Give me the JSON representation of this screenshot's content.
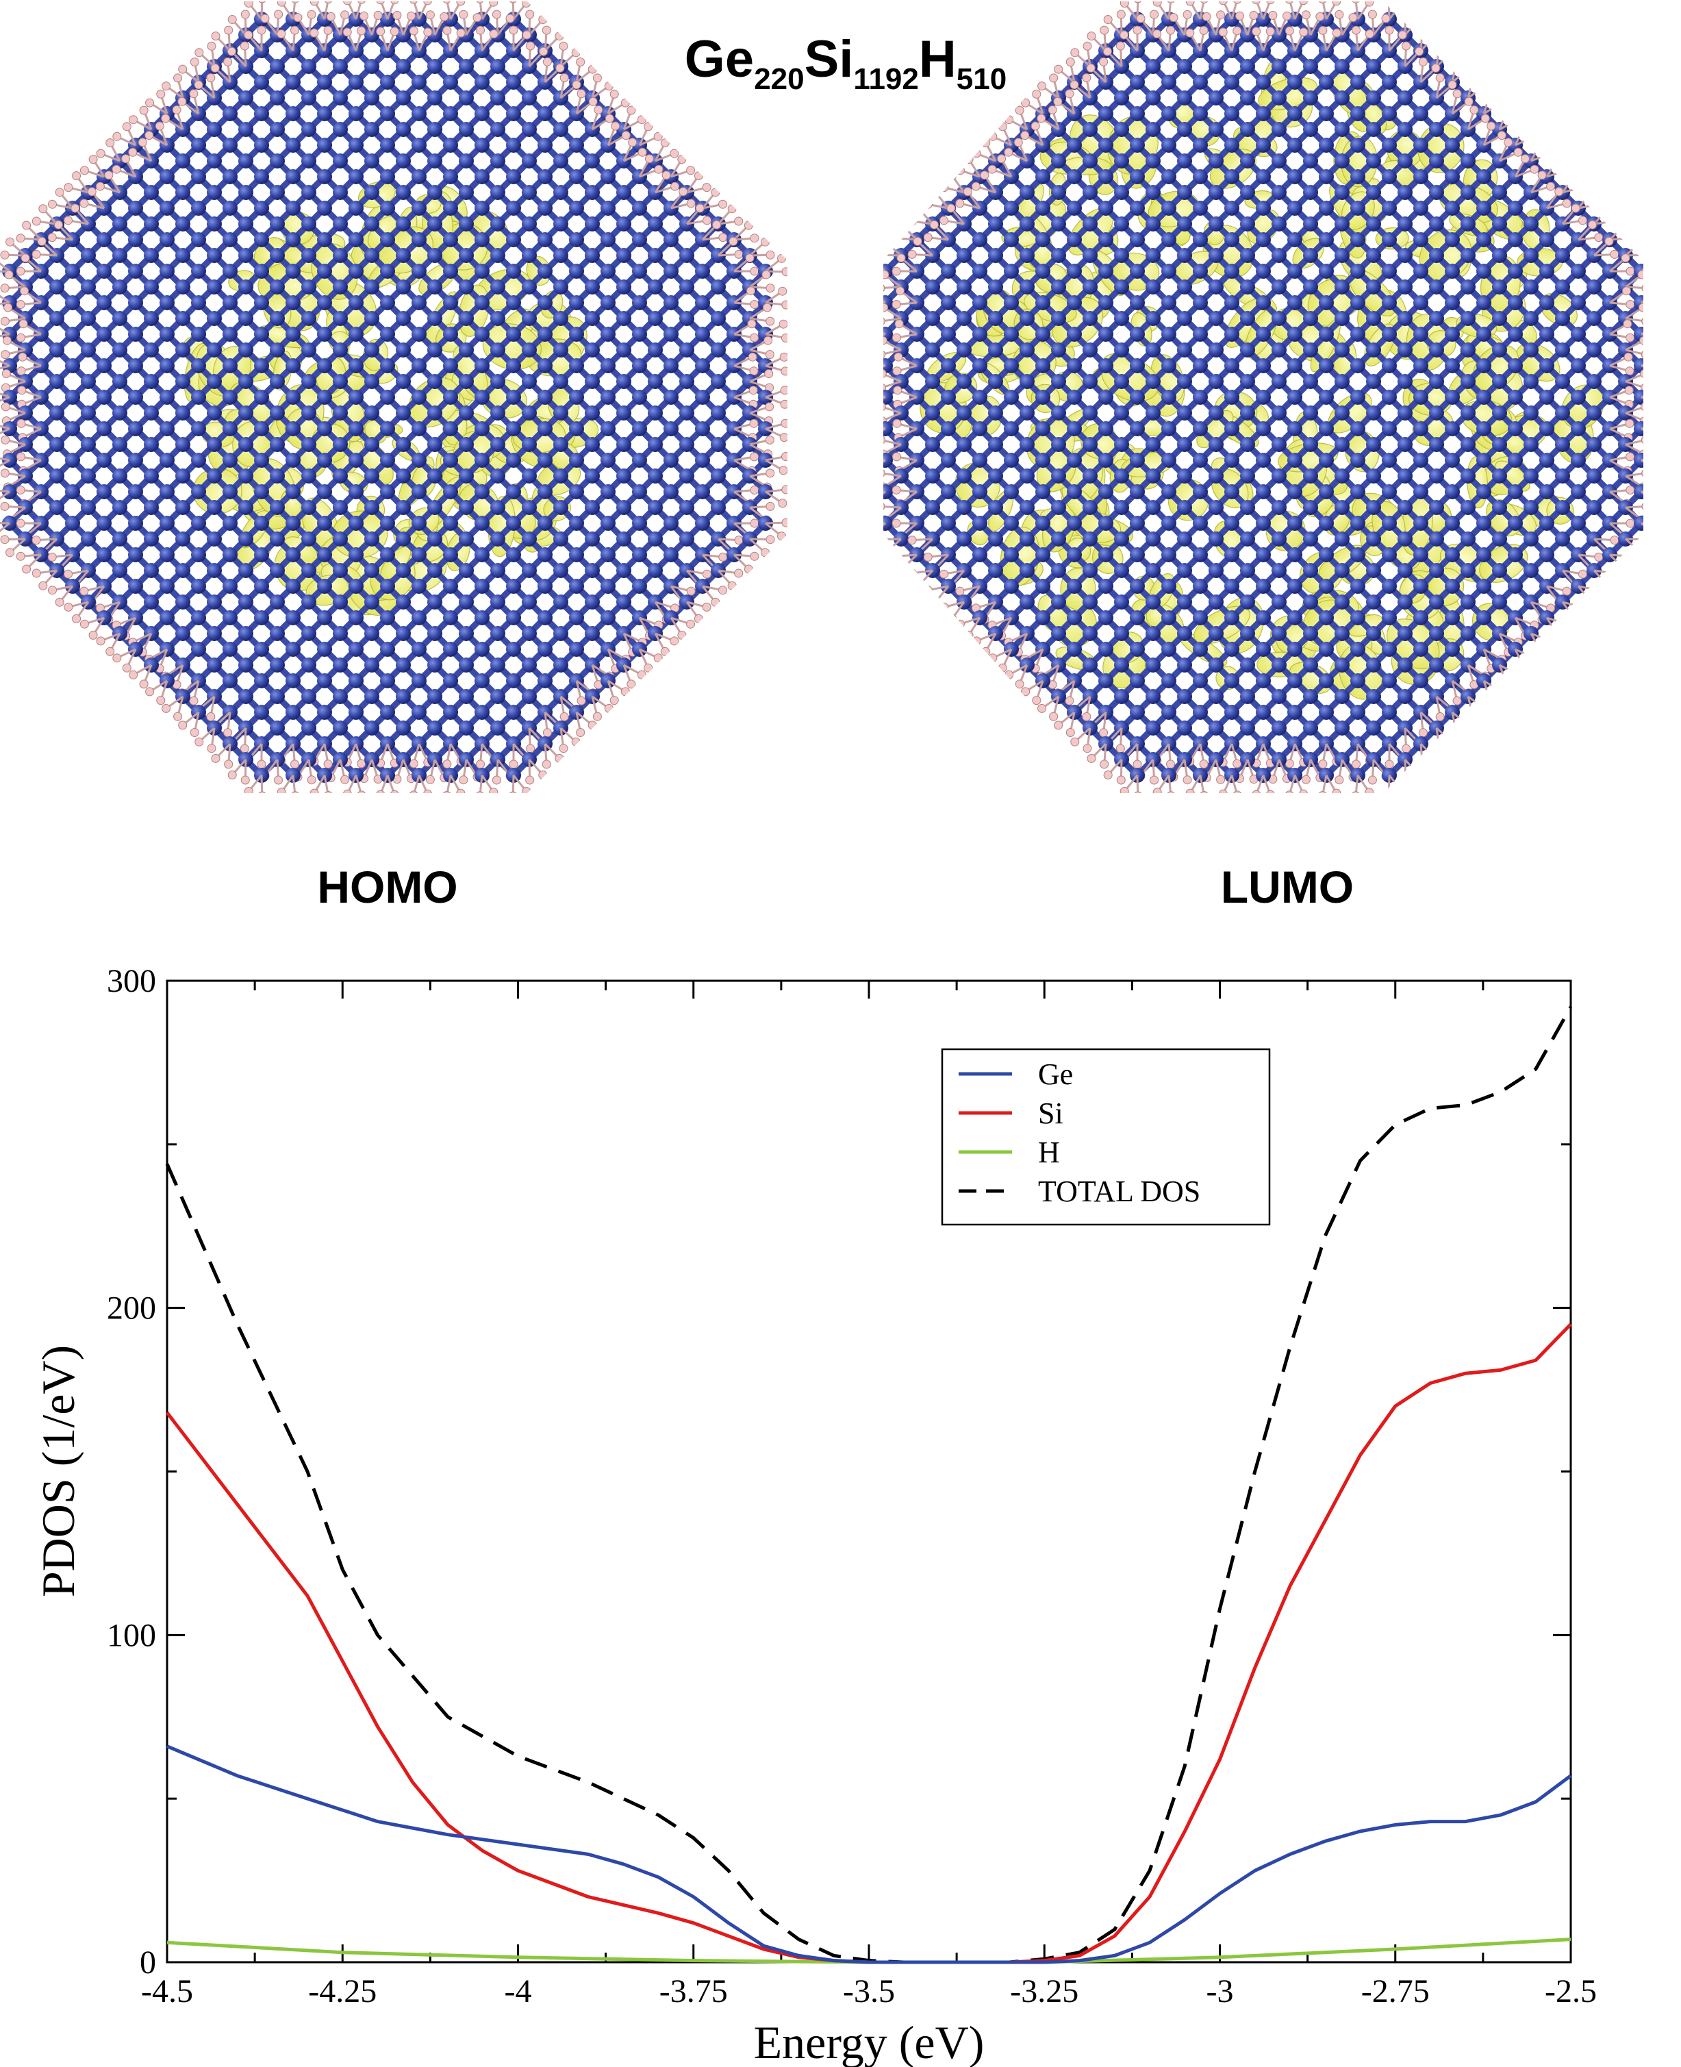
{
  "figure": {
    "formula": {
      "p1": "Ge",
      "s1": "220",
      "p2": "Si",
      "s2": "1192",
      "p3": "H",
      "s3": "510"
    },
    "homo_label": "HOMO",
    "lumo_label": "LUMO"
  },
  "colors": {
    "lattice": "#3a4aa6",
    "orbital": "#eef07a",
    "hydrogen": "#f2c8c8"
  },
  "chart_data": {
    "type": "line",
    "xlabel": "Energy (eV)",
    "ylabel": "PDOS (1/eV)",
    "xlim": [
      -4.5,
      -2.5
    ],
    "ylim": [
      0,
      300
    ],
    "x_ticks": [
      -4.5,
      -4.25,
      -4,
      -3.75,
      -3.5,
      -3.25,
      -3,
      -2.75,
      -2.5
    ],
    "x_tick_labels": [
      "-4.5",
      "-4.25",
      "-4",
      "-3.75",
      "-3.5",
      "-3.25",
      "-3",
      "-2.75",
      "-2.5"
    ],
    "y_ticks": [
      0,
      100,
      200,
      300
    ],
    "y_tick_labels": [
      "0",
      "100",
      "200",
      "300"
    ],
    "legend_position": "top-right",
    "series": [
      {
        "name": "Ge",
        "color": "#2e48a8",
        "dash": "solid",
        "x": [
          -4.5,
          -4.4,
          -4.3,
          -4.2,
          -4.1,
          -4.0,
          -3.9,
          -3.85,
          -3.8,
          -3.75,
          -3.7,
          -3.65,
          -3.6,
          -3.55,
          -3.5,
          -3.45,
          -3.4,
          -3.35,
          -3.3,
          -3.25,
          -3.2,
          -3.15,
          -3.1,
          -3.05,
          -3.0,
          -2.95,
          -2.9,
          -2.85,
          -2.8,
          -2.75,
          -2.7,
          -2.65,
          -2.6,
          -2.55,
          -2.5
        ],
        "values": [
          66,
          57,
          50,
          43,
          39,
          36,
          33,
          30,
          26,
          20,
          12,
          5,
          2,
          0.5,
          0,
          0,
          0,
          0,
          0,
          0,
          0.5,
          2,
          6,
          13,
          21,
          28,
          33,
          37,
          40,
          42,
          43,
          43,
          45,
          49,
          57
        ]
      },
      {
        "name": "Si",
        "color": "#e01b1b",
        "dash": "solid",
        "x": [
          -4.5,
          -4.4,
          -4.3,
          -4.25,
          -4.2,
          -4.15,
          -4.1,
          -4.05,
          -4.0,
          -3.9,
          -3.8,
          -3.75,
          -3.7,
          -3.65,
          -3.6,
          -3.55,
          -3.5,
          -3.45,
          -3.4,
          -3.35,
          -3.3,
          -3.25,
          -3.2,
          -3.15,
          -3.1,
          -3.05,
          -3.0,
          -2.95,
          -2.9,
          -2.85,
          -2.8,
          -2.75,
          -2.7,
          -2.65,
          -2.6,
          -2.55,
          -2.5
        ],
        "values": [
          168,
          140,
          112,
          92,
          72,
          55,
          42,
          34,
          28,
          20,
          15,
          12,
          8,
          4,
          1.5,
          0.5,
          0,
          0,
          0,
          0,
          0,
          0.5,
          2,
          8,
          20,
          40,
          62,
          90,
          115,
          135,
          155,
          170,
          177,
          180,
          181,
          184,
          195
        ]
      },
      {
        "name": "H",
        "color": "#8cc63f",
        "dash": "solid",
        "x": [
          -4.5,
          -4.25,
          -4.0,
          -3.75,
          -3.5,
          -3.25,
          -3.0,
          -2.75,
          -2.5
        ],
        "values": [
          6,
          3,
          1.5,
          0.5,
          0,
          0,
          1.5,
          4,
          7
        ]
      },
      {
        "name": "TOTAL DOS",
        "color": "#000000",
        "dash": "dashed",
        "x": [
          -4.5,
          -4.4,
          -4.3,
          -4.25,
          -4.2,
          -4.1,
          -4.0,
          -3.9,
          -3.85,
          -3.8,
          -3.75,
          -3.7,
          -3.65,
          -3.6,
          -3.55,
          -3.5,
          -3.45,
          -3.4,
          -3.35,
          -3.3,
          -3.25,
          -3.2,
          -3.15,
          -3.1,
          -3.05,
          -3.0,
          -2.95,
          -2.9,
          -2.85,
          -2.8,
          -2.75,
          -2.7,
          -2.65,
          -2.6,
          -2.55,
          -2.5
        ],
        "values": [
          244,
          195,
          150,
          120,
          100,
          75,
          63,
          55,
          50,
          45,
          38,
          28,
          15,
          7,
          2,
          0.5,
          0,
          0,
          0,
          0,
          1,
          3,
          10,
          28,
          60,
          108,
          150,
          188,
          222,
          245,
          256,
          261,
          262,
          266,
          273,
          292
        ]
      }
    ]
  }
}
